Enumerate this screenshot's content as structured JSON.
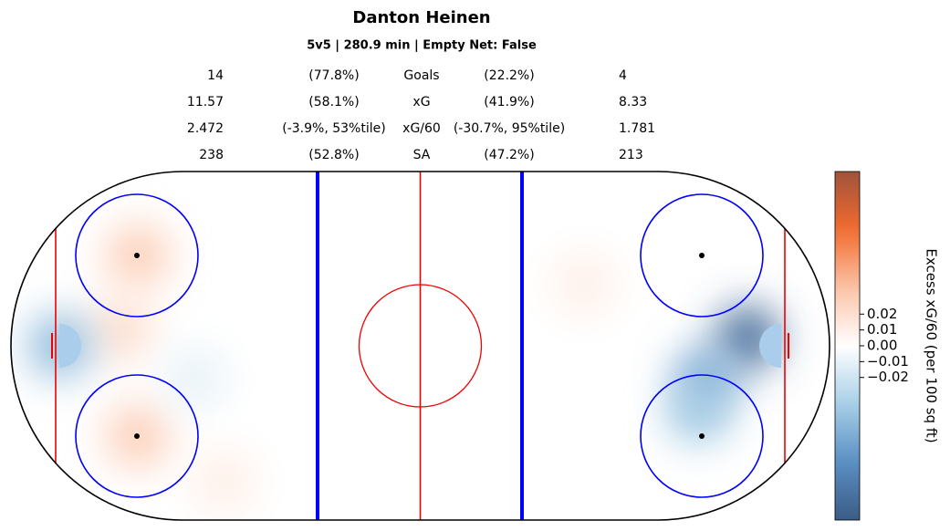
{
  "chart_data": {
    "type": "rink-heatmap",
    "title": "Danton Heinen",
    "subtitle": "5v5 | 280.9 min | Empty Net: False",
    "table": {
      "rows": [
        [
          "14",
          "(77.8%)",
          "Goals",
          "(22.2%)",
          "4"
        ],
        [
          "11.57",
          "(58.1%)",
          "xG",
          "(41.9%)",
          "8.33"
        ],
        [
          "2.472",
          "(-3.9%, 53%tile)",
          "xG/60",
          "(-30.7%, 95%tile)",
          "1.781"
        ],
        [
          "238",
          "(52.8%)",
          "SA",
          "(47.2%)",
          "213"
        ]
      ]
    },
    "heatmap": {
      "x": [
        -69,
        -69,
        -73,
        -88,
        -55,
        -48,
        80,
        70,
        68,
        40
      ],
      "y": [
        22,
        -22,
        4,
        0,
        -8,
        -33,
        2,
        -8,
        -16,
        15
      ],
      "values": [
        0.03,
        0.03,
        0.02,
        -0.05,
        -0.01,
        0.01,
        -0.1,
        -0.06,
        -0.04,
        0.01
      ]
    },
    "xlim": [
      -100,
      100
    ],
    "ylim": [
      -42.5,
      42.5
    ],
    "colormap": [
      "#3b5b86",
      "#5a8fc4",
      "#a7cfe6",
      "#ffffff",
      "#fbc3a6",
      "#f26b2f",
      "#a0533a"
    ],
    "clim": [
      -0.11,
      0.11
    ],
    "cticks": [
      0.02,
      0.01,
      {
        "value": 0,
        "label": "0.00"
      },
      {
        "value": -0.01,
        "label": "−0.01"
      },
      {
        "value": -0.02,
        "label": "−0.02"
      }
    ],
    "colorbar_label": "Excess xG/60 (per 100 sq ft)"
  }
}
